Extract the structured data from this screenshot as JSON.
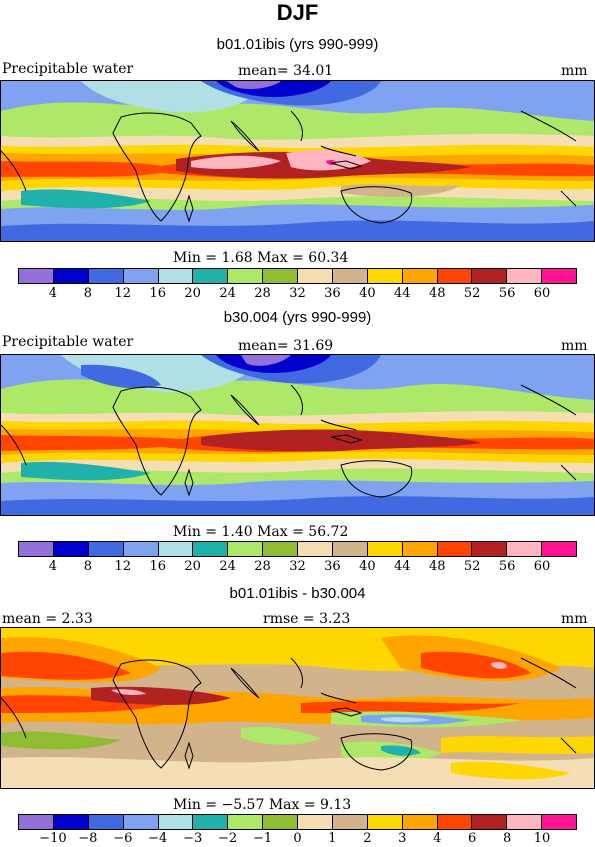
{
  "title": "DJF",
  "panels": [
    {
      "subtitle": "b01.01ibis (yrs 990-999)",
      "left_label": "Precipitable water",
      "center_label": "mean=  34.01",
      "right_label": "mm",
      "minmax": "Min =   1.68  Max =  60.34",
      "colorbar": {
        "colors": [
          "#9370db",
          "#0000cd",
          "#4169e1",
          "#7fa3f0",
          "#b0e0e6",
          "#20b2aa",
          "#aee868",
          "#8fbc30",
          "#f5deb3",
          "#d2b48c",
          "#ffd700",
          "#ffa500",
          "#ff4500",
          "#b22222",
          "#ffb6c1",
          "#ff1493"
        ],
        "ticks": [
          "4",
          "8",
          "12",
          "16",
          "20",
          "24",
          "28",
          "32",
          "36",
          "40",
          "44",
          "48",
          "52",
          "56",
          "60"
        ]
      }
    },
    {
      "subtitle": "b30.004 (yrs 990-999)",
      "left_label": "Precipitable water",
      "center_label": "mean=  31.69",
      "right_label": "mm",
      "minmax": "Min =   1.40  Max =  56.72",
      "colorbar": {
        "colors": [
          "#9370db",
          "#0000cd",
          "#4169e1",
          "#7fa3f0",
          "#b0e0e6",
          "#20b2aa",
          "#aee868",
          "#8fbc30",
          "#f5deb3",
          "#d2b48c",
          "#ffd700",
          "#ffa500",
          "#ff4500",
          "#b22222",
          "#ffb6c1",
          "#ff1493"
        ],
        "ticks": [
          "4",
          "8",
          "12",
          "16",
          "20",
          "24",
          "28",
          "32",
          "36",
          "40",
          "44",
          "48",
          "52",
          "56",
          "60"
        ]
      }
    },
    {
      "subtitle": "b01.01ibis - b30.004",
      "left_label": "mean =   2.33",
      "center_label": "rmse =   3.23",
      "right_label": "mm",
      "minmax": "Min =  −5.57  Max =   9.13",
      "colorbar": {
        "colors": [
          "#9370db",
          "#0000cd",
          "#4169e1",
          "#7fa3f0",
          "#b0e0e6",
          "#20b2aa",
          "#aee868",
          "#8fbc30",
          "#f5deb3",
          "#d2b48c",
          "#ffd700",
          "#ffa500",
          "#ff4500",
          "#b22222",
          "#ffb6c1",
          "#ff1493"
        ],
        "ticks": [
          "−10",
          "−8",
          "−6",
          "−4",
          "−3",
          "−2",
          "−1",
          "0",
          "1",
          "2",
          "3",
          "4",
          "6",
          "8",
          "10"
        ]
      }
    }
  ]
}
